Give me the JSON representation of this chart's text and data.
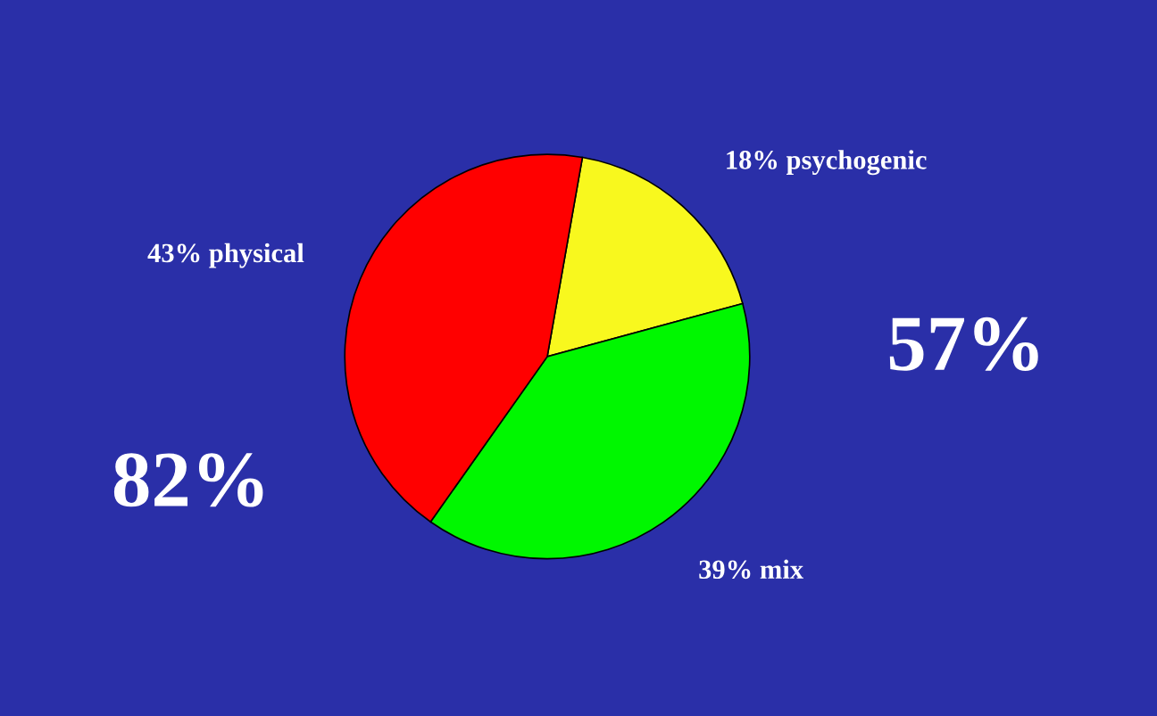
{
  "chart_data": {
    "type": "pie",
    "categories": [
      "psychogenic",
      "mix",
      "physical"
    ],
    "values": [
      18,
      39,
      43
    ],
    "value_labels": [
      "18%",
      "39%",
      "43%"
    ],
    "colors": [
      "#f8f81e",
      "#00f700",
      "#ff0000"
    ],
    "annotations": [
      "82%",
      "57%"
    ]
  }
}
